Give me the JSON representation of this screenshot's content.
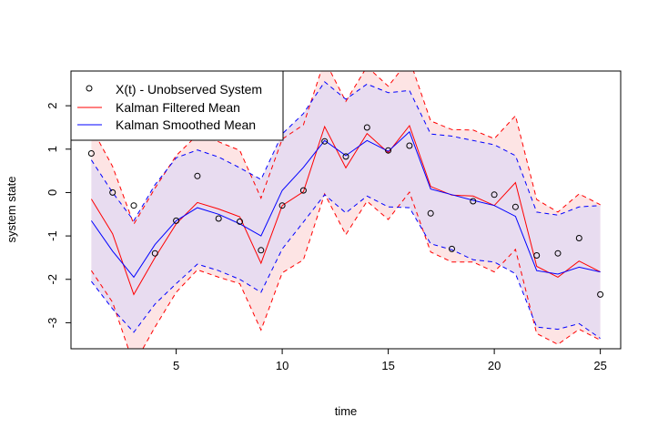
{
  "chart_data": {
    "type": "line",
    "title": "",
    "xlabel": "time",
    "ylabel": "system state",
    "xlim": [
      0.04,
      25.96
    ],
    "ylim": [
      -3.6,
      2.8
    ],
    "xticks": [
      5,
      10,
      15,
      20,
      25
    ],
    "yticks": [
      -3,
      -2,
      -1,
      0,
      1,
      2
    ],
    "grid": false,
    "legend_position": "top-left",
    "x": [
      1,
      2,
      3,
      4,
      5,
      6,
      7,
      8,
      9,
      10,
      11,
      12,
      13,
      14,
      15,
      16,
      17,
      18,
      19,
      20,
      21,
      22,
      23,
      24,
      25
    ],
    "observed": {
      "name": "X(t) - Unobserved System",
      "values": [
        0.9,
        0.0,
        -0.3,
        -1.4,
        -0.65,
        0.38,
        -0.6,
        -0.67,
        -1.33,
        -0.3,
        0.05,
        1.18,
        0.83,
        1.5,
        0.97,
        1.08,
        -0.48,
        -1.3,
        -0.2,
        -0.05,
        -0.33,
        -1.45,
        -1.4,
        -1.05,
        -2.35
      ]
    },
    "filtered": {
      "name": "Kalman Filtered Mean",
      "color": "#ff0000",
      "band_color": "#fde4e4",
      "values": [
        -0.15,
        -0.95,
        -2.35,
        -1.5,
        -0.72,
        -0.23,
        -0.38,
        -0.56,
        -1.63,
        -0.3,
        0.02,
        1.52,
        0.57,
        1.36,
        0.92,
        1.54,
        0.14,
        -0.06,
        -0.08,
        -0.3,
        0.23,
        -1.7,
        -1.95,
        -1.58,
        -1.83
      ],
      "upper": [
        1.5,
        0.6,
        -0.73,
        0.1,
        0.85,
        1.33,
        1.17,
        0.97,
        -0.13,
        1.23,
        1.56,
        3.05,
        2.1,
        2.9,
        2.45,
        3.07,
        1.65,
        1.45,
        1.44,
        1.24,
        1.77,
        -0.16,
        -0.45,
        -0.03,
        -0.28
      ],
      "lower": [
        -1.8,
        -2.53,
        -3.97,
        -3.1,
        -2.3,
        -1.78,
        -1.95,
        -2.1,
        -3.17,
        -1.85,
        -1.55,
        -0.03,
        -0.97,
        -0.2,
        -0.62,
        0.01,
        -1.37,
        -1.6,
        -1.6,
        -1.83,
        -1.31,
        -3.25,
        -3.5,
        -3.15,
        -3.4
      ]
    },
    "smoothed": {
      "name": "Kalman Smoothed Mean",
      "color": "#0000ff",
      "band_color": "#e8dcf0",
      "values": [
        -0.65,
        -1.35,
        -1.95,
        -1.2,
        -0.65,
        -0.35,
        -0.5,
        -0.72,
        -1.0,
        0.05,
        0.58,
        1.2,
        0.85,
        1.2,
        0.95,
        1.4,
        0.08,
        -0.05,
        -0.18,
        -0.3,
        -0.55,
        -1.8,
        -1.88,
        -1.72,
        -1.83
      ],
      "upper": [
        0.75,
        0.0,
        -0.65,
        0.18,
        0.8,
        0.98,
        0.82,
        0.57,
        0.3,
        1.35,
        1.82,
        2.55,
        2.15,
        2.5,
        2.3,
        2.35,
        1.35,
        1.3,
        1.2,
        1.1,
        0.85,
        -0.45,
        -0.52,
        -0.33,
        -0.3
      ],
      "lower": [
        -2.05,
        -2.68,
        -3.22,
        -2.57,
        -2.1,
        -1.65,
        -1.8,
        -2.0,
        -2.3,
        -1.3,
        -0.68,
        -0.05,
        -0.47,
        -0.08,
        -0.33,
        -0.35,
        -1.18,
        -1.32,
        -1.55,
        -1.6,
        -1.87,
        -3.1,
        -3.15,
        -3.02,
        -3.36
      ]
    }
  }
}
